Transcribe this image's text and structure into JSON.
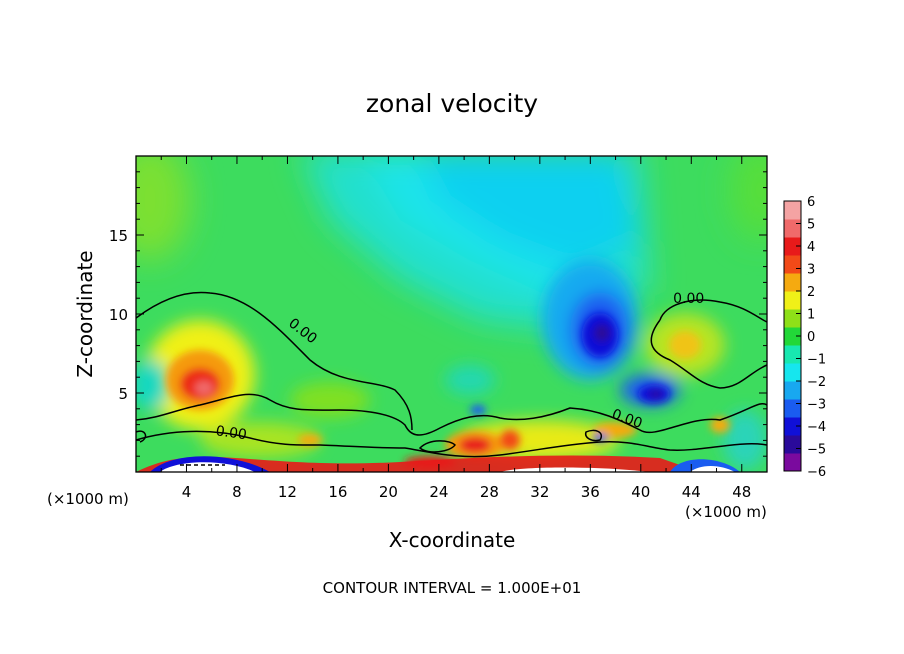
{
  "chart_data": {
    "type": "heatmap",
    "title": "zonal velocity",
    "xlabel": "X-coordinate",
    "ylabel": "Z-coordinate",
    "x_unit": "(×1000 m)",
    "x_unit_right": "(×1000 m)",
    "footnote": "CONTOUR INTERVAL = 1.000E+01",
    "xlim": [
      0,
      50
    ],
    "ylim": [
      0,
      20
    ],
    "x_ticks": [
      4,
      8,
      12,
      16,
      20,
      24,
      28,
      32,
      36,
      40,
      44,
      48
    ],
    "y_ticks": [
      5,
      10,
      15
    ],
    "colorbar": {
      "ticks": [
        6,
        5,
        4,
        3,
        2,
        1,
        0,
        -1,
        -2,
        -3,
        -4,
        -5,
        -6
      ],
      "tick_labels": [
        "6",
        "5",
        "4",
        "3",
        "2",
        "1",
        "0",
        "−1",
        "−2",
        "−3",
        "−4",
        "−5",
        "−6"
      ],
      "colors": [
        "#7a0a9e",
        "#2a0a9a",
        "#1010d8",
        "#1a5cf0",
        "#18a8f0",
        "#16e6ee",
        "#18e8b0",
        "#22d838",
        "#8ee018",
        "#f0f018",
        "#f5aa10",
        "#f24a18",
        "#e81a1a",
        "#f06a6a",
        "#f4a3a3"
      ]
    },
    "contour_labels": [
      {
        "text": "0.00",
        "x": 13.0,
        "z": 8.7,
        "angle": 38
      },
      {
        "text": "0.00",
        "x": 43.8,
        "z": 10.7,
        "angle": 0
      },
      {
        "text": "0.00",
        "x": 7.5,
        "z": 2.2,
        "angle": 8
      },
      {
        "text": "0.00",
        "x": 38.8,
        "z": 3.1,
        "angle": 20
      }
    ],
    "features": [
      {
        "type": "jet",
        "x": 5,
        "z": 5.5,
        "value": 5.0
      },
      {
        "type": "jet",
        "x": 43.5,
        "z": 8,
        "value": 2.0
      },
      {
        "type": "jet",
        "x": 27,
        "z": 1.8,
        "value": 4.5
      },
      {
        "type": "jet",
        "x": 22,
        "z": 0.8,
        "value": 4.0
      },
      {
        "type": "jet",
        "x": 36.5,
        "z": 8.8,
        "value": -5.0
      },
      {
        "type": "jet",
        "x": 40.5,
        "z": 5.0,
        "value": -5.5
      },
      {
        "type": "jet",
        "x": 32,
        "z": 13,
        "value": -2.2
      }
    ]
  }
}
